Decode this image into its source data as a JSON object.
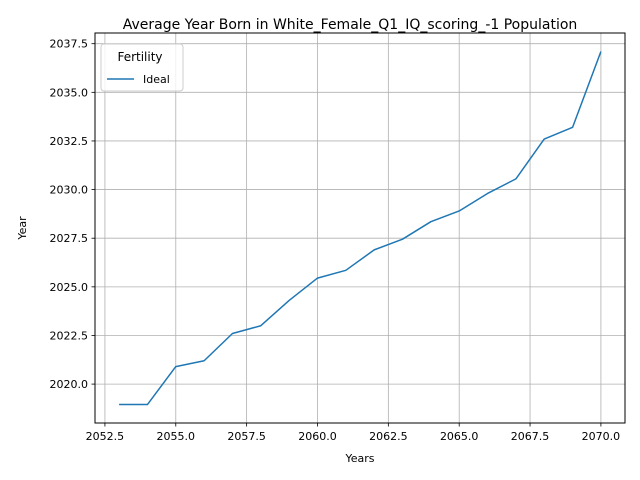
{
  "chart_data": {
    "type": "line",
    "title": "Average Year Born in White_Female_Q1_IQ_scoring_-1 Population",
    "xlabel": "Years",
    "ylabel": "Year",
    "xlim": [
      2052.15,
      2070.85
    ],
    "ylim": [
      2018.0,
      2038.05
    ],
    "x_ticks": [
      2052.5,
      2055.0,
      2057.5,
      2060.0,
      2062.5,
      2065.0,
      2067.5,
      2070.0
    ],
    "x_tick_labels": [
      "2052.5",
      "2055.0",
      "2057.5",
      "2060.0",
      "2062.5",
      "2065.0",
      "2067.5",
      "2070.0"
    ],
    "y_ticks": [
      2020.0,
      2022.5,
      2025.0,
      2027.5,
      2030.0,
      2032.5,
      2035.0,
      2037.5
    ],
    "y_tick_labels": [
      "2020.0",
      "2022.5",
      "2025.0",
      "2027.5",
      "2030.0",
      "2032.5",
      "2035.0",
      "2037.5"
    ],
    "grid": true,
    "legend": {
      "title": "Fertility",
      "placement": "top-left"
    },
    "x": [
      2053,
      2054,
      2055,
      2056,
      2057,
      2058,
      2059,
      2060,
      2061,
      2062,
      2063,
      2064,
      2065,
      2066,
      2067,
      2068,
      2069,
      2070
    ],
    "series": [
      {
        "name": "Ideal",
        "color": "#1f77b4",
        "values": [
          2018.95,
          2018.95,
          2020.9,
          2021.2,
          2022.6,
          2023.0,
          2024.3,
          2025.45,
          2025.85,
          2026.9,
          2027.45,
          2028.35,
          2028.9,
          2029.8,
          2030.55,
          2032.6,
          2033.2,
          2037.1
        ]
      }
    ]
  }
}
